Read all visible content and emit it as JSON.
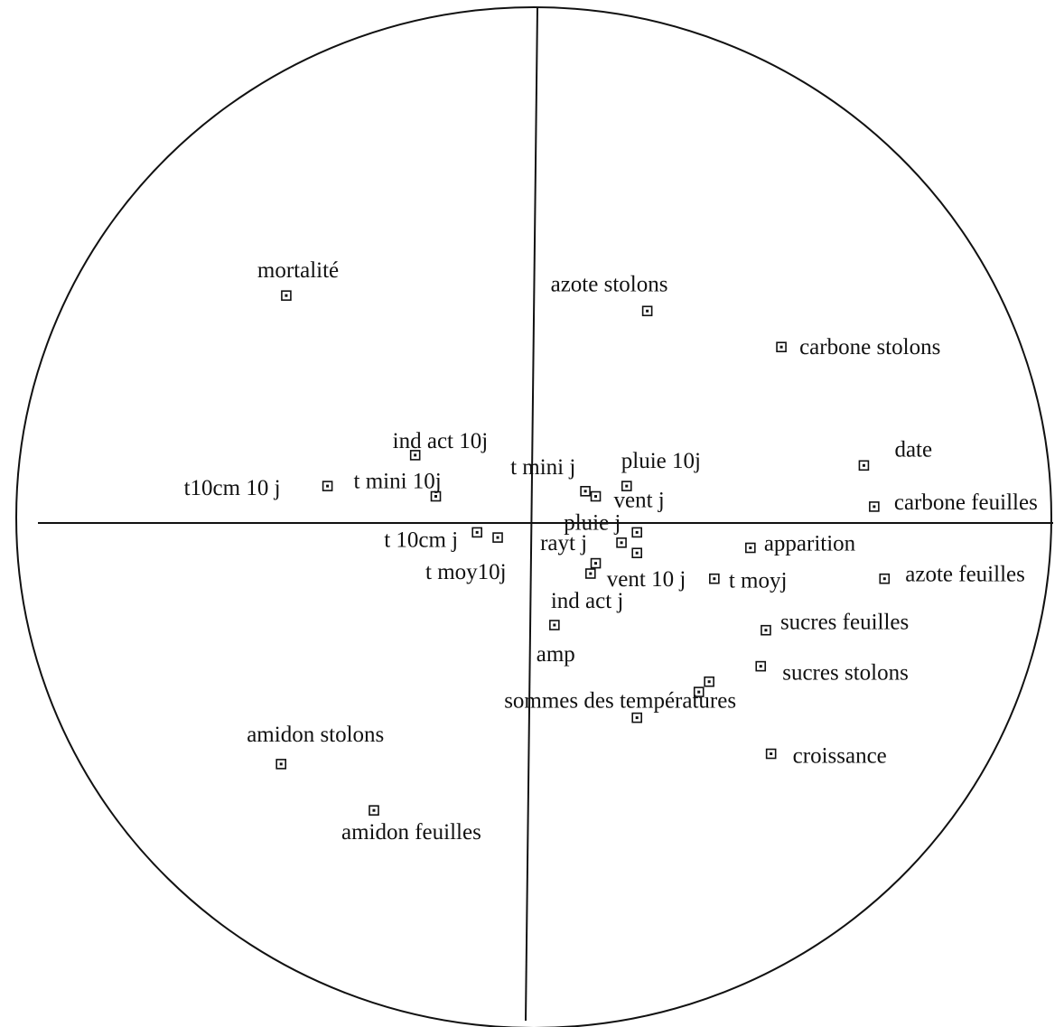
{
  "chart_data": {
    "type": "scatter",
    "categories": [
      "mortalité",
      "azote stolons",
      "carbone stolons",
      "ind act 10j",
      "date",
      "t10cm 10 j",
      "t mini 10j",
      "t mini j",
      "pluie 10j",
      "vent j",
      "carbone feuilles",
      "pluie j",
      "t 10cm j",
      "t moy10j",
      "rayt j",
      "vent 10 j",
      "t moyj",
      "apparition",
      "azote feuilles",
      "ind act j",
      "sucres feuilles",
      "sucres stolons",
      "amp",
      "sommes des températures",
      "croissance",
      "amidon stolons",
      "amidon feuilles",
      null,
      null,
      null
    ],
    "x": [
      -0.48,
      0.22,
      0.48,
      -0.23,
      0.64,
      -0.4,
      -0.19,
      0.1,
      0.18,
      0.12,
      0.66,
      0.2,
      -0.11,
      -0.07,
      0.17,
      0.11,
      0.35,
      0.42,
      0.68,
      0.04,
      0.45,
      0.44,
      0.32,
      0.2,
      0.46,
      -0.49,
      -0.31,
      0.12,
      0.2,
      0.34
    ],
    "values": [
      0.44,
      0.41,
      0.34,
      0.13,
      0.11,
      0.07,
      0.05,
      0.06,
      0.07,
      0.05,
      0.03,
      -0.02,
      -0.02,
      -0.03,
      -0.04,
      -0.1,
      -0.11,
      -0.05,
      -0.11,
      -0.2,
      -0.21,
      -0.28,
      -0.33,
      -0.38,
      -0.45,
      -0.47,
      -0.56,
      -0.08,
      -0.06,
      -0.31
    ],
    "xlim": [
      -1,
      1
    ],
    "ylim": [
      -1,
      1
    ],
    "color": "#111111"
  }
}
